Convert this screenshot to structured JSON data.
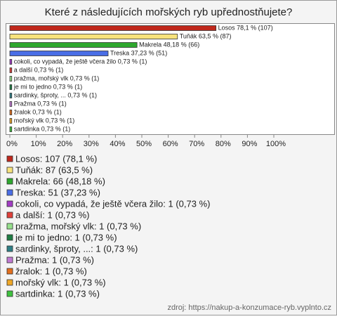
{
  "chart_data": {
    "type": "bar",
    "orientation": "horizontal",
    "title": "Které z následujících mořských ryb upřednostňujete?",
    "categories": [
      "Losos",
      "Tuňák",
      "Makrela",
      "Treska",
      "cokoli, co vypadá, že ještě včera žilo",
      "a další",
      "pražma, mořský vlk",
      "je mi to jedno",
      "sardinky, šproty, ...",
      "Pražma",
      "žralok",
      "mořský vlk",
      "sartdinka"
    ],
    "values": [
      78.1,
      63.5,
      48.18,
      37.23,
      0.73,
      0.73,
      0.73,
      0.73,
      0.73,
      0.73,
      0.73,
      0.73,
      0.73
    ],
    "value_labels": [
      "Losos 78,1 % (107)",
      "Tuňák 63,5 % (87)",
      "Makrela 48,18 % (66)",
      "Treska 37,23 % (51)",
      "cokoli, co vypadá, že ještě včera žilo 0,73 % (1)",
      "a další 0,73 % (1)",
      "pražma, mořský vlk 0,73 % (1)",
      "je mi to jedno 0,73 % (1)",
      "sardinky, šproty, ... 0,73 % (1)",
      "Pražma 0,73 % (1)",
      "žralok 0,73 % (1)",
      "mořský vlk 0,73 % (1)",
      "sartdinka 0,73 % (1)"
    ],
    "legend_labels": [
      "Losos: 107 (78,1 %)",
      "Tuňák: 87 (63,5 %)",
      "Makrela: 66 (48,18 %)",
      "Treska: 51 (37,23 %)",
      "cokoli, co vypadá, že ještě včera žilo: 1 (0,73 %)",
      "a další: 1 (0,73 %)",
      "pražma, mořský vlk: 1 (0,73 %)",
      "je mi to jedno: 1 (0,73 %)",
      "sardinky, šproty, ...: 1 (0,73 %)",
      "Pražma: 1 (0,73 %)",
      "žralok: 1 (0,73 %)",
      "mořský vlk: 1 (0,73 %)",
      "sartdinka: 1 (0,73 %)"
    ],
    "colors": [
      "#c0281c",
      "#f7e27c",
      "#2ea82e",
      "#4a6ee6",
      "#a23cc4",
      "#e0403a",
      "#96e08c",
      "#1e7d44",
      "#2e7f86",
      "#c07ad2",
      "#e2701e",
      "#f0a828",
      "#3fc23f"
    ],
    "xlim": [
      0,
      100
    ],
    "xticks": [
      {
        "value": 0,
        "label": "0%"
      },
      {
        "value": 10,
        "label": "10%"
      },
      {
        "value": 20,
        "label": "20%"
      },
      {
        "value": 30,
        "label": "30%"
      },
      {
        "value": 40,
        "label": "40%"
      },
      {
        "value": 50,
        "label": "50%"
      },
      {
        "value": 60,
        "label": "60%"
      },
      {
        "value": 70,
        "label": "70%"
      },
      {
        "value": 80,
        "label": "80%"
      },
      {
        "value": 90,
        "label": "90%"
      },
      {
        "value": 100,
        "label": "100%"
      }
    ],
    "source": "zdroj: https://nakup-a-konzumace-ryb.vyplnto.cz"
  }
}
